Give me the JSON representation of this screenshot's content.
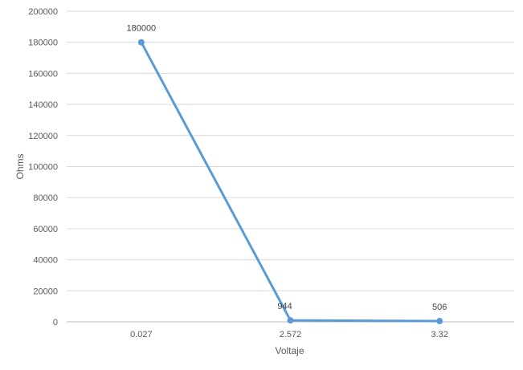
{
  "chart_data": {
    "type": "line",
    "categories": [
      "0.027",
      "2.572",
      "3.32"
    ],
    "series": [
      {
        "values": [
          180000,
          944,
          506
        ]
      }
    ],
    "data_labels": [
      "180000",
      "944",
      "506"
    ],
    "xlabel": "Voltaje",
    "ylabel": "Ohms",
    "ylim": [
      0,
      200000
    ],
    "yticks": [
      "0",
      "20000",
      "40000",
      "60000",
      "80000",
      "100000",
      "120000",
      "140000",
      "160000",
      "180000",
      "200000"
    ],
    "grid": true,
    "legend": "none",
    "line_color": "#5b9bd5"
  }
}
